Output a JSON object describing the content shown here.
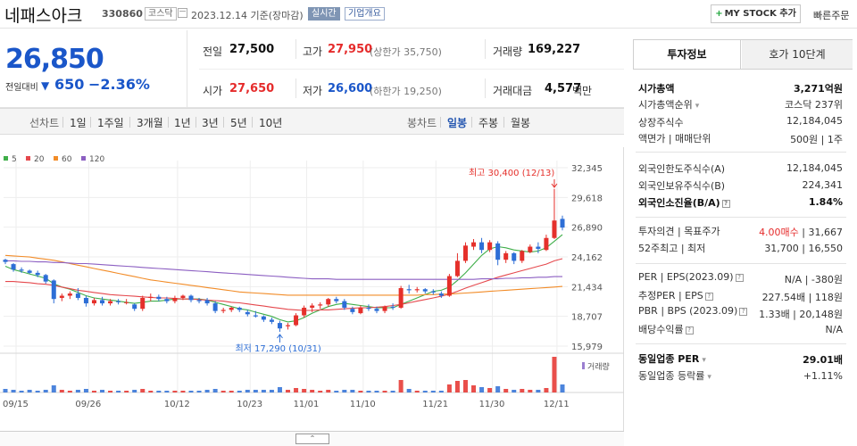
{
  "header": {
    "name": "네패스아크",
    "code": "330860",
    "market_badge": "코스닥",
    "date": "2023.12.14 기준(장마감)",
    "live_badge": "실시간",
    "info_badge": "기업개요",
    "mystock_label": "MY STOCK 추가",
    "quick_order": "빠른주문"
  },
  "quote": {
    "price": "26,850",
    "change_label": "전일대비",
    "change_arrow": "▼",
    "change": "650",
    "change_pct": "−2.36%",
    "prev_close_label": "전일",
    "prev_close": "27,500",
    "high_label": "고가",
    "high": "27,950",
    "upper_limit": "(상한가 35,750)",
    "volume_label": "거래량",
    "volume": "169,227",
    "open_label": "시가",
    "open": "27,650",
    "low_label": "저가",
    "low": "26,600",
    "lower_limit": "(하한가 19,250)",
    "amount_label": "거래대금",
    "amount": "4,577",
    "amount_unit": "백만"
  },
  "toolbar": {
    "line_label": "선차트",
    "periods": [
      "1일",
      "1주일",
      "3개월",
      "1년",
      "3년",
      "5년",
      "10년"
    ],
    "candle_label": "봉차트",
    "candle_types": [
      "일봉",
      "주봉",
      "월봉"
    ],
    "active_candle": "일봉"
  },
  "chart_data": {
    "type": "candlestick",
    "legend": [
      {
        "name": "5",
        "color": "#3fae49"
      },
      {
        "name": "20",
        "color": "#e5484d"
      },
      {
        "name": "60",
        "color": "#f28c28"
      },
      {
        "name": "120",
        "color": "#8c5fc2"
      }
    ],
    "y_ticks": [
      "32,345",
      "29,618",
      "26,890",
      "24,162",
      "21,434",
      "18,707",
      "15,979"
    ],
    "ylim": [
      15979,
      32345
    ],
    "x_ticks": [
      "09/15",
      "09/26",
      "10/12",
      "10/23",
      "11/01",
      "11/10",
      "11/21",
      "11/30",
      "12/11"
    ],
    "high_annotation": "최고 30,400 (12/13)",
    "low_annotation": "최저 17,290 (10/31)",
    "volume_label": "거래량",
    "candles": [
      [
        23900,
        24000,
        23500,
        23700
      ],
      [
        23500,
        23600,
        22800,
        23000
      ],
      [
        23000,
        23200,
        22700,
        22900
      ],
      [
        22900,
        23000,
        22600,
        22700
      ],
      [
        22700,
        22900,
        22300,
        22500
      ],
      [
        22500,
        22600,
        21700,
        21900
      ],
      [
        22000,
        22100,
        19900,
        20300
      ],
      [
        20400,
        20800,
        20100,
        20600
      ],
      [
        20600,
        21000,
        20300,
        20800
      ],
      [
        20800,
        21300,
        20200,
        20400
      ],
      [
        20400,
        20600,
        19600,
        19900
      ],
      [
        19900,
        20400,
        19700,
        20200
      ],
      [
        20200,
        20500,
        19700,
        19900
      ],
      [
        19900,
        20300,
        19700,
        20100
      ],
      [
        20100,
        20300,
        19800,
        20000
      ],
      [
        20000,
        20300,
        19800,
        20000
      ],
      [
        19800,
        19900,
        19200,
        19400
      ],
      [
        19400,
        20600,
        19200,
        20400
      ],
      [
        20400,
        20800,
        20100,
        20500
      ],
      [
        20500,
        20700,
        20100,
        20300
      ],
      [
        20300,
        20500,
        19900,
        20100
      ],
      [
        20100,
        20600,
        19900,
        20400
      ],
      [
        20400,
        20700,
        20200,
        20600
      ],
      [
        20600,
        20700,
        20000,
        20200
      ],
      [
        20200,
        20400,
        19900,
        20100
      ],
      [
        20200,
        20400,
        19700,
        19900
      ],
      [
        19900,
        20100,
        19000,
        19200
      ],
      [
        19200,
        19500,
        19000,
        19300
      ],
      [
        19300,
        19600,
        19100,
        19500
      ],
      [
        19500,
        19600,
        19100,
        19300
      ],
      [
        19100,
        19300,
        18700,
        18900
      ],
      [
        18800,
        19200,
        18600,
        18700
      ],
      [
        18700,
        18800,
        18200,
        18400
      ],
      [
        18400,
        18600,
        18000,
        18200
      ],
      [
        18100,
        18300,
        17290,
        17600
      ],
      [
        17800,
        18100,
        17500,
        17900
      ],
      [
        17900,
        19000,
        17800,
        18800
      ],
      [
        18800,
        19700,
        18600,
        19500
      ],
      [
        19500,
        19900,
        19100,
        19700
      ],
      [
        19700,
        20000,
        19400,
        19800
      ],
      [
        19800,
        20400,
        19600,
        20300
      ],
      [
        20300,
        20500,
        19900,
        20100
      ],
      [
        20100,
        20300,
        19300,
        19500
      ],
      [
        19400,
        19600,
        18900,
        19100
      ],
      [
        19000,
        19700,
        18900,
        19500
      ],
      [
        19500,
        19800,
        19200,
        19400
      ],
      [
        19400,
        19600,
        19000,
        19200
      ],
      [
        19200,
        19700,
        19000,
        19600
      ],
      [
        19600,
        19900,
        19300,
        19500
      ],
      [
        19500,
        21500,
        19400,
        21300
      ],
      [
        21200,
        21600,
        20800,
        21100
      ],
      [
        21100,
        21400,
        20900,
        21200
      ],
      [
        21200,
        21300,
        20800,
        21000
      ],
      [
        21000,
        21200,
        20700,
        20900
      ],
      [
        20800,
        21000,
        20400,
        20600
      ],
      [
        20600,
        22600,
        20500,
        22400
      ],
      [
        22400,
        24500,
        22300,
        23800
      ],
      [
        23800,
        25500,
        23600,
        25200
      ],
      [
        25100,
        25800,
        24800,
        25500
      ],
      [
        25500,
        25900,
        24500,
        24800
      ],
      [
        24800,
        25700,
        24600,
        25500
      ],
      [
        25400,
        25600,
        23400,
        23900
      ],
      [
        23900,
        24700,
        23600,
        24500
      ],
      [
        24500,
        24600,
        23500,
        23800
      ],
      [
        23800,
        24800,
        23600,
        24700
      ],
      [
        24600,
        25300,
        24500,
        25100
      ],
      [
        25100,
        25500,
        24500,
        24900
      ],
      [
        24800,
        26200,
        24700,
        25900
      ],
      [
        25900,
        30400,
        25800,
        27500
      ],
      [
        27650,
        27950,
        26600,
        26850
      ]
    ],
    "volumes": [
      4,
      3,
      2,
      3,
      2,
      3,
      8,
      3,
      2,
      3,
      4,
      2,
      3,
      2,
      2,
      2,
      3,
      4,
      2,
      2,
      2,
      2,
      2,
      2,
      2,
      3,
      4,
      2,
      2,
      2,
      3,
      3,
      3,
      3,
      6,
      3,
      5,
      4,
      3,
      2,
      3,
      2,
      3,
      3,
      2,
      2,
      2,
      2,
      2,
      14,
      4,
      2,
      2,
      2,
      2,
      9,
      13,
      14,
      8,
      6,
      5,
      7,
      4,
      3,
      4,
      3,
      3,
      5,
      40,
      9
    ],
    "ma": {
      "5": [
        23300,
        23000,
        22800,
        22600,
        22400,
        22200,
        21700,
        21400,
        21200,
        20900,
        20600,
        20400,
        20300,
        20200,
        20100,
        20000,
        19900,
        20000,
        20100,
        20100,
        20200,
        20300,
        20300,
        20300,
        20300,
        20200,
        20000,
        19800,
        19600,
        19400,
        19300,
        19100,
        18900,
        18700,
        18400,
        18200,
        18300,
        18600,
        19000,
        19300,
        19600,
        19800,
        19900,
        19800,
        19700,
        19600,
        19500,
        19500,
        19500,
        19800,
        20100,
        20400,
        20700,
        21000,
        21100,
        21400,
        22000,
        22700,
        23500,
        24300,
        24900,
        25100,
        25000,
        24800,
        24700,
        24600,
        24700,
        25000,
        25600,
        26200
      ],
      "20": [
        21900,
        21900,
        21850,
        21800,
        21700,
        21650,
        21550,
        21400,
        21250,
        21100,
        21000,
        20900,
        20800,
        20700,
        20650,
        20600,
        20550,
        20500,
        20450,
        20400,
        20400,
        20350,
        20300,
        20300,
        20250,
        20200,
        20150,
        20100,
        20000,
        19950,
        19850,
        19750,
        19650,
        19550,
        19450,
        19350,
        19300,
        19250,
        19250,
        19300,
        19300,
        19350,
        19400,
        19450,
        19500,
        19500,
        19550,
        19600,
        19700,
        19800,
        19950,
        20100,
        20250,
        20400,
        20550,
        20750,
        21000,
        21300,
        21550,
        21800,
        22050,
        22300,
        22500,
        22700,
        22900,
        23100,
        23300,
        23500,
        23800,
        24000
      ],
      "60": [
        24300,
        24250,
        24200,
        24150,
        24050,
        23950,
        23850,
        23700,
        23550,
        23400,
        23250,
        23100,
        22950,
        22800,
        22650,
        22500,
        22350,
        22200,
        22050,
        21950,
        21850,
        21750,
        21650,
        21550,
        21450,
        21350,
        21250,
        21150,
        21050,
        20950,
        20900,
        20850,
        20800,
        20750,
        20700,
        20650,
        20650,
        20650,
        20650,
        20650,
        20650,
        20650,
        20650,
        20650,
        20650,
        20650,
        20650,
        20650,
        20650,
        20650,
        20650,
        20650,
        20700,
        20700,
        20750,
        20750,
        20800,
        20850,
        20900,
        20950,
        21000,
        21050,
        21100,
        21150,
        21200,
        21250,
        21300,
        21350,
        21400,
        21450
      ],
      "120": [
        23800,
        23800,
        23750,
        23750,
        23700,
        23700,
        23650,
        23650,
        23600,
        23550,
        23550,
        23500,
        23450,
        23400,
        23350,
        23300,
        23250,
        23200,
        23150,
        23100,
        23050,
        23000,
        22950,
        22900,
        22850,
        22800,
        22750,
        22700,
        22650,
        22600,
        22550,
        22500,
        22450,
        22400,
        22350,
        22300,
        22250,
        22200,
        22150,
        22150,
        22150,
        22100,
        22100,
        22100,
        22100,
        22100,
        22100,
        22100,
        22100,
        22100,
        22100,
        22100,
        22100,
        22100,
        22100,
        22100,
        22100,
        22100,
        22100,
        22150,
        22150,
        22150,
        22200,
        22200,
        22250,
        22250,
        22300,
        22300,
        22350,
        22350
      ]
    },
    "colors": {
      "up": "#e5302b",
      "down": "#2d6ed6",
      "grid": "#eeeeee"
    }
  },
  "panel": {
    "tab_invest": "투자정보",
    "tab_quote": "호가 10단계",
    "market_cap_label": "시가총액",
    "market_cap": "3,271억원",
    "rank_label": "시가총액순위",
    "rank": "코스닥 237위",
    "shares_label": "상장주식수",
    "shares": "12,184,045",
    "par_label": "액면가 | 매매단위",
    "par": "500원 | 1주",
    "foreign_limit_label": "외국인한도주식수(A)",
    "foreign_limit": "12,184,045",
    "foreign_hold_label": "외국인보유주식수(B)",
    "foreign_hold": "224,341",
    "foreign_ratio_label": "외국인소진율(B/A)",
    "foreign_ratio": "1.84%",
    "opinion_label": "투자의견 | 목표주가",
    "opinion": "4.00매수",
    "target_price": "31,667",
    "w52_label": "52주최고 | 최저",
    "w52": "31,700 | 16,550",
    "per_label": "PER | EPS(2023.09)",
    "per": "N/A | -380원",
    "est_per_label": "추정PER | EPS",
    "est_per": "227.54배 | 118원",
    "pbr_label": "PBR | BPS (2023.09)",
    "pbr": "1.33배 | 20,148원",
    "dividend_label": "배당수익률",
    "dividend": "N/A",
    "ind_per_label": "동일업종 PER",
    "ind_per": "29.01배",
    "ind_chg_label": "동일업종 등락률",
    "ind_chg": "+1.11%"
  }
}
